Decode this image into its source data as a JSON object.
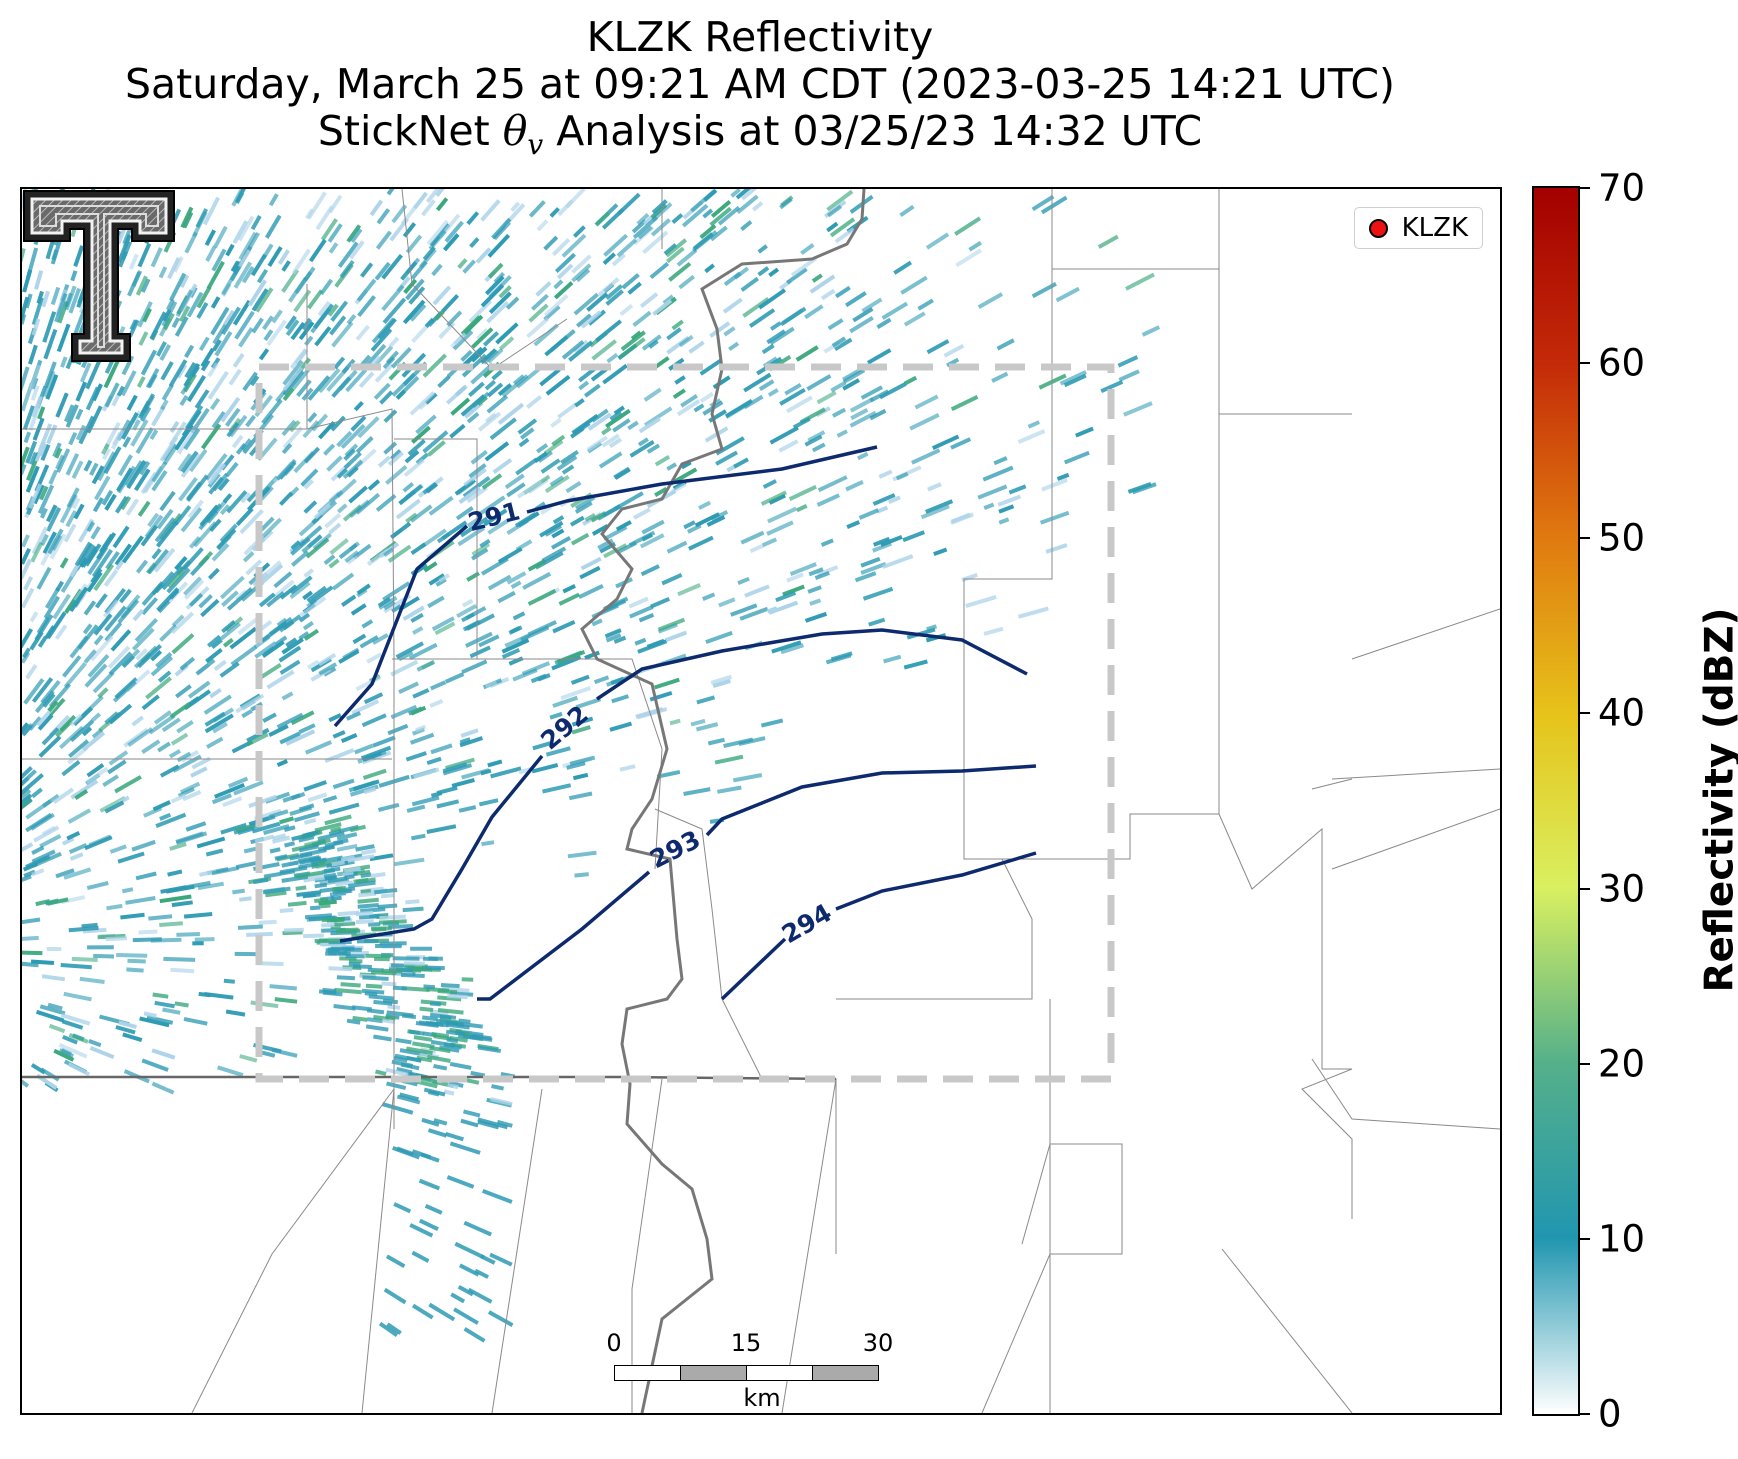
{
  "title": {
    "line1": "KLZK Reflectivity",
    "line2": "Saturday, March 25 at 09:21 AM CDT (2023-03-25 14:21 UTC)",
    "line3_prefix": "StickNet",
    "line3_symbol": "θ",
    "line3_subscript": "v",
    "line3_suffix": "Analysis at 03/25/23 14:32 UTC"
  },
  "legend": {
    "label": "KLZK",
    "marker_color": "#ee1111"
  },
  "logo": {
    "icon": "double-t-logo-icon"
  },
  "colors": {
    "contour": "#0d2a6e",
    "domain_box": "#c8c8c8",
    "county_lines": "#8a8a8a",
    "state_line": "#666666",
    "river": "#777777"
  },
  "contours": {
    "variable": "virtual potential temperature (K)",
    "levels": [
      {
        "value": 291,
        "label": "291"
      },
      {
        "value": 292,
        "label": "292"
      },
      {
        "value": 293,
        "label": "293"
      },
      {
        "value": 294,
        "label": "294"
      }
    ]
  },
  "scalebar": {
    "ticks": [
      "0",
      "15",
      "30"
    ],
    "unit": "km"
  },
  "colorbar": {
    "label": "Reflectivity (dBZ)",
    "min": 0,
    "max": 70,
    "ticks": [
      "0",
      "10",
      "20",
      "30",
      "40",
      "50",
      "60",
      "70"
    ],
    "gradient": [
      "#ffffff",
      "#2196b0",
      "#55b08a",
      "#d9f060",
      "#e6c31a",
      "#e07a10",
      "#c42a08",
      "#a30000"
    ]
  },
  "reflectivity": {
    "typical_dbz": "5–15",
    "color_low": "#aed4ea",
    "color_mid": "#2e9bb4",
    "color_high": "#3aa87c"
  }
}
